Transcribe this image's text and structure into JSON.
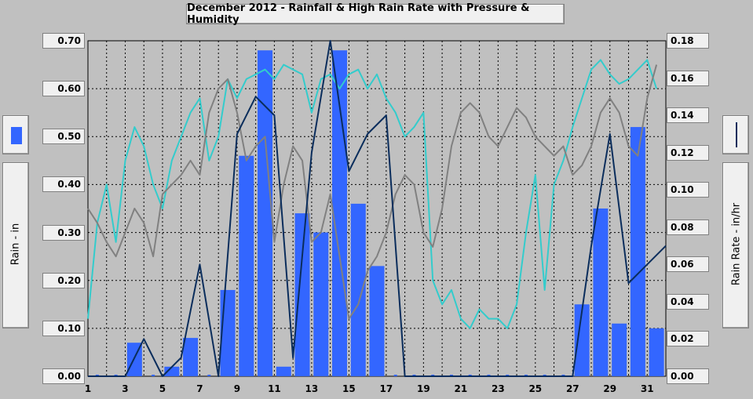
{
  "chart_data": {
    "type": "bar",
    "title": "December 2012 - Rainfall & High Rain Rate with Pressure & Humidity",
    "ylabel": "Rain - in",
    "y2label": "Rain Rate - in/hr",
    "ylim": [
      0,
      0.7
    ],
    "y2lim": [
      0,
      0.18
    ],
    "xlim": [
      1,
      32
    ],
    "yticks": [
      "0.00",
      "0.10",
      "0.20",
      "0.30",
      "0.40",
      "0.50",
      "0.60",
      "0.70"
    ],
    "y2ticks": [
      "0.00",
      "0.02",
      "0.04",
      "0.06",
      "0.08",
      "0.10",
      "0.12",
      "0.14",
      "0.16",
      "0.18"
    ],
    "xticks": [
      1,
      3,
      5,
      7,
      9,
      11,
      13,
      15,
      17,
      19,
      21,
      23,
      25,
      27,
      29,
      31
    ],
    "grid": true,
    "colors": {
      "rain_bar": "#3366ff",
      "rain_rate": "#0a2d5c",
      "humidity": "#33cccc",
      "pressure": "#808080",
      "plot_bg": "#c0c0c0"
    },
    "series": [
      {
        "type": "bar",
        "x": [
          1,
          2,
          3,
          4,
          5,
          6,
          7,
          8,
          9,
          10,
          11,
          12,
          13,
          14,
          15,
          16,
          17,
          18,
          19,
          20,
          21,
          22,
          23,
          24,
          25,
          26,
          27,
          28,
          29,
          30,
          31
        ],
        "values": [
          0,
          0,
          0.07,
          0,
          0.02,
          0.08,
          0,
          0.18,
          0.46,
          0.68,
          0.02,
          0.34,
          0.3,
          0.68,
          0.36,
          0.23,
          0,
          0,
          0,
          0,
          0,
          0,
          0,
          0,
          0,
          0,
          0.15,
          0.35,
          0.11,
          0.52,
          0.1
        ]
      },
      {
        "type": "line",
        "x": [
          1,
          2,
          3,
          4,
          5,
          6,
          7,
          8,
          9,
          10,
          11,
          12,
          13,
          14,
          15,
          16,
          17,
          18,
          19,
          20,
          21,
          22,
          23,
          24,
          25,
          26,
          27,
          28,
          29,
          30,
          31,
          32
        ],
        "values": [
          0,
          0,
          0,
          0.02,
          0,
          0.01,
          0.06,
          0,
          0.13,
          0.15,
          0.14,
          0.01,
          0.12,
          0.18,
          0.11,
          0.13,
          0.14,
          0,
          0,
          0,
          0,
          0,
          0,
          0,
          0,
          0,
          0,
          0.07,
          0.13,
          0.05,
          0.06,
          0.07
        ]
      },
      {
        "type": "line",
        "x": [
          1,
          1.5,
          2,
          2.5,
          3,
          3.5,
          4,
          4.5,
          5,
          5.5,
          6,
          6.5,
          7,
          7.5,
          8,
          8.5,
          9,
          9.5,
          10,
          10.5,
          11,
          11.5,
          12,
          12.5,
          13,
          13.5,
          14,
          14.5,
          15,
          15.5,
          16,
          16.5,
          17,
          17.5,
          18,
          18.5,
          19,
          19.5,
          20,
          20.5,
          21,
          21.5,
          22,
          22.5,
          23,
          23.5,
          24,
          24.5,
          25,
          25.5,
          26,
          26.5,
          27,
          27.5,
          28,
          28.5,
          29,
          29.5,
          30,
          30.5,
          31,
          31.5
        ],
        "values": [
          0.12,
          0.32,
          0.4,
          0.28,
          0.45,
          0.52,
          0.48,
          0.4,
          0.35,
          0.45,
          0.5,
          0.55,
          0.58,
          0.45,
          0.5,
          0.62,
          0.58,
          0.62,
          0.63,
          0.64,
          0.62,
          0.65,
          0.64,
          0.63,
          0.55,
          0.62,
          0.63,
          0.6,
          0.63,
          0.64,
          0.6,
          0.63,
          0.58,
          0.55,
          0.5,
          0.52,
          0.55,
          0.2,
          0.15,
          0.18,
          0.12,
          0.1,
          0.14,
          0.12,
          0.12,
          0.1,
          0.15,
          0.3,
          0.42,
          0.18,
          0.4,
          0.45,
          0.52,
          0.58,
          0.64,
          0.66,
          0.63,
          0.61,
          0.62,
          0.64,
          0.66,
          0.6
        ]
      },
      {
        "type": "line",
        "x": [
          1,
          1.5,
          2,
          2.5,
          3,
          3.5,
          4,
          4.5,
          5,
          5.5,
          6,
          6.5,
          7,
          7.5,
          8,
          8.5,
          9,
          9.5,
          10,
          10.5,
          11,
          11.5,
          12,
          12.5,
          13,
          13.5,
          14,
          14.5,
          15,
          15.5,
          16,
          16.5,
          17,
          17.5,
          18,
          18.5,
          19,
          19.5,
          20,
          20.5,
          21,
          21.5,
          22,
          22.5,
          23,
          23.5,
          24,
          24.5,
          25,
          25.5,
          26,
          26.5,
          27,
          27.5,
          28,
          28.5,
          29,
          29.5,
          30,
          30.5,
          31,
          31.5
        ],
        "values": [
          0.35,
          0.32,
          0.28,
          0.25,
          0.3,
          0.35,
          0.32,
          0.25,
          0.38,
          0.4,
          0.42,
          0.45,
          0.42,
          0.55,
          0.6,
          0.62,
          0.55,
          0.45,
          0.48,
          0.5,
          0.28,
          0.4,
          0.48,
          0.45,
          0.28,
          0.3,
          0.38,
          0.25,
          0.12,
          0.15,
          0.22,
          0.25,
          0.3,
          0.38,
          0.42,
          0.4,
          0.3,
          0.27,
          0.35,
          0.48,
          0.55,
          0.57,
          0.55,
          0.5,
          0.48,
          0.52,
          0.56,
          0.54,
          0.5,
          0.48,
          0.46,
          0.48,
          0.42,
          0.44,
          0.48,
          0.55,
          0.58,
          0.55,
          0.48,
          0.46,
          0.58,
          0.65
        ]
      }
    ]
  }
}
